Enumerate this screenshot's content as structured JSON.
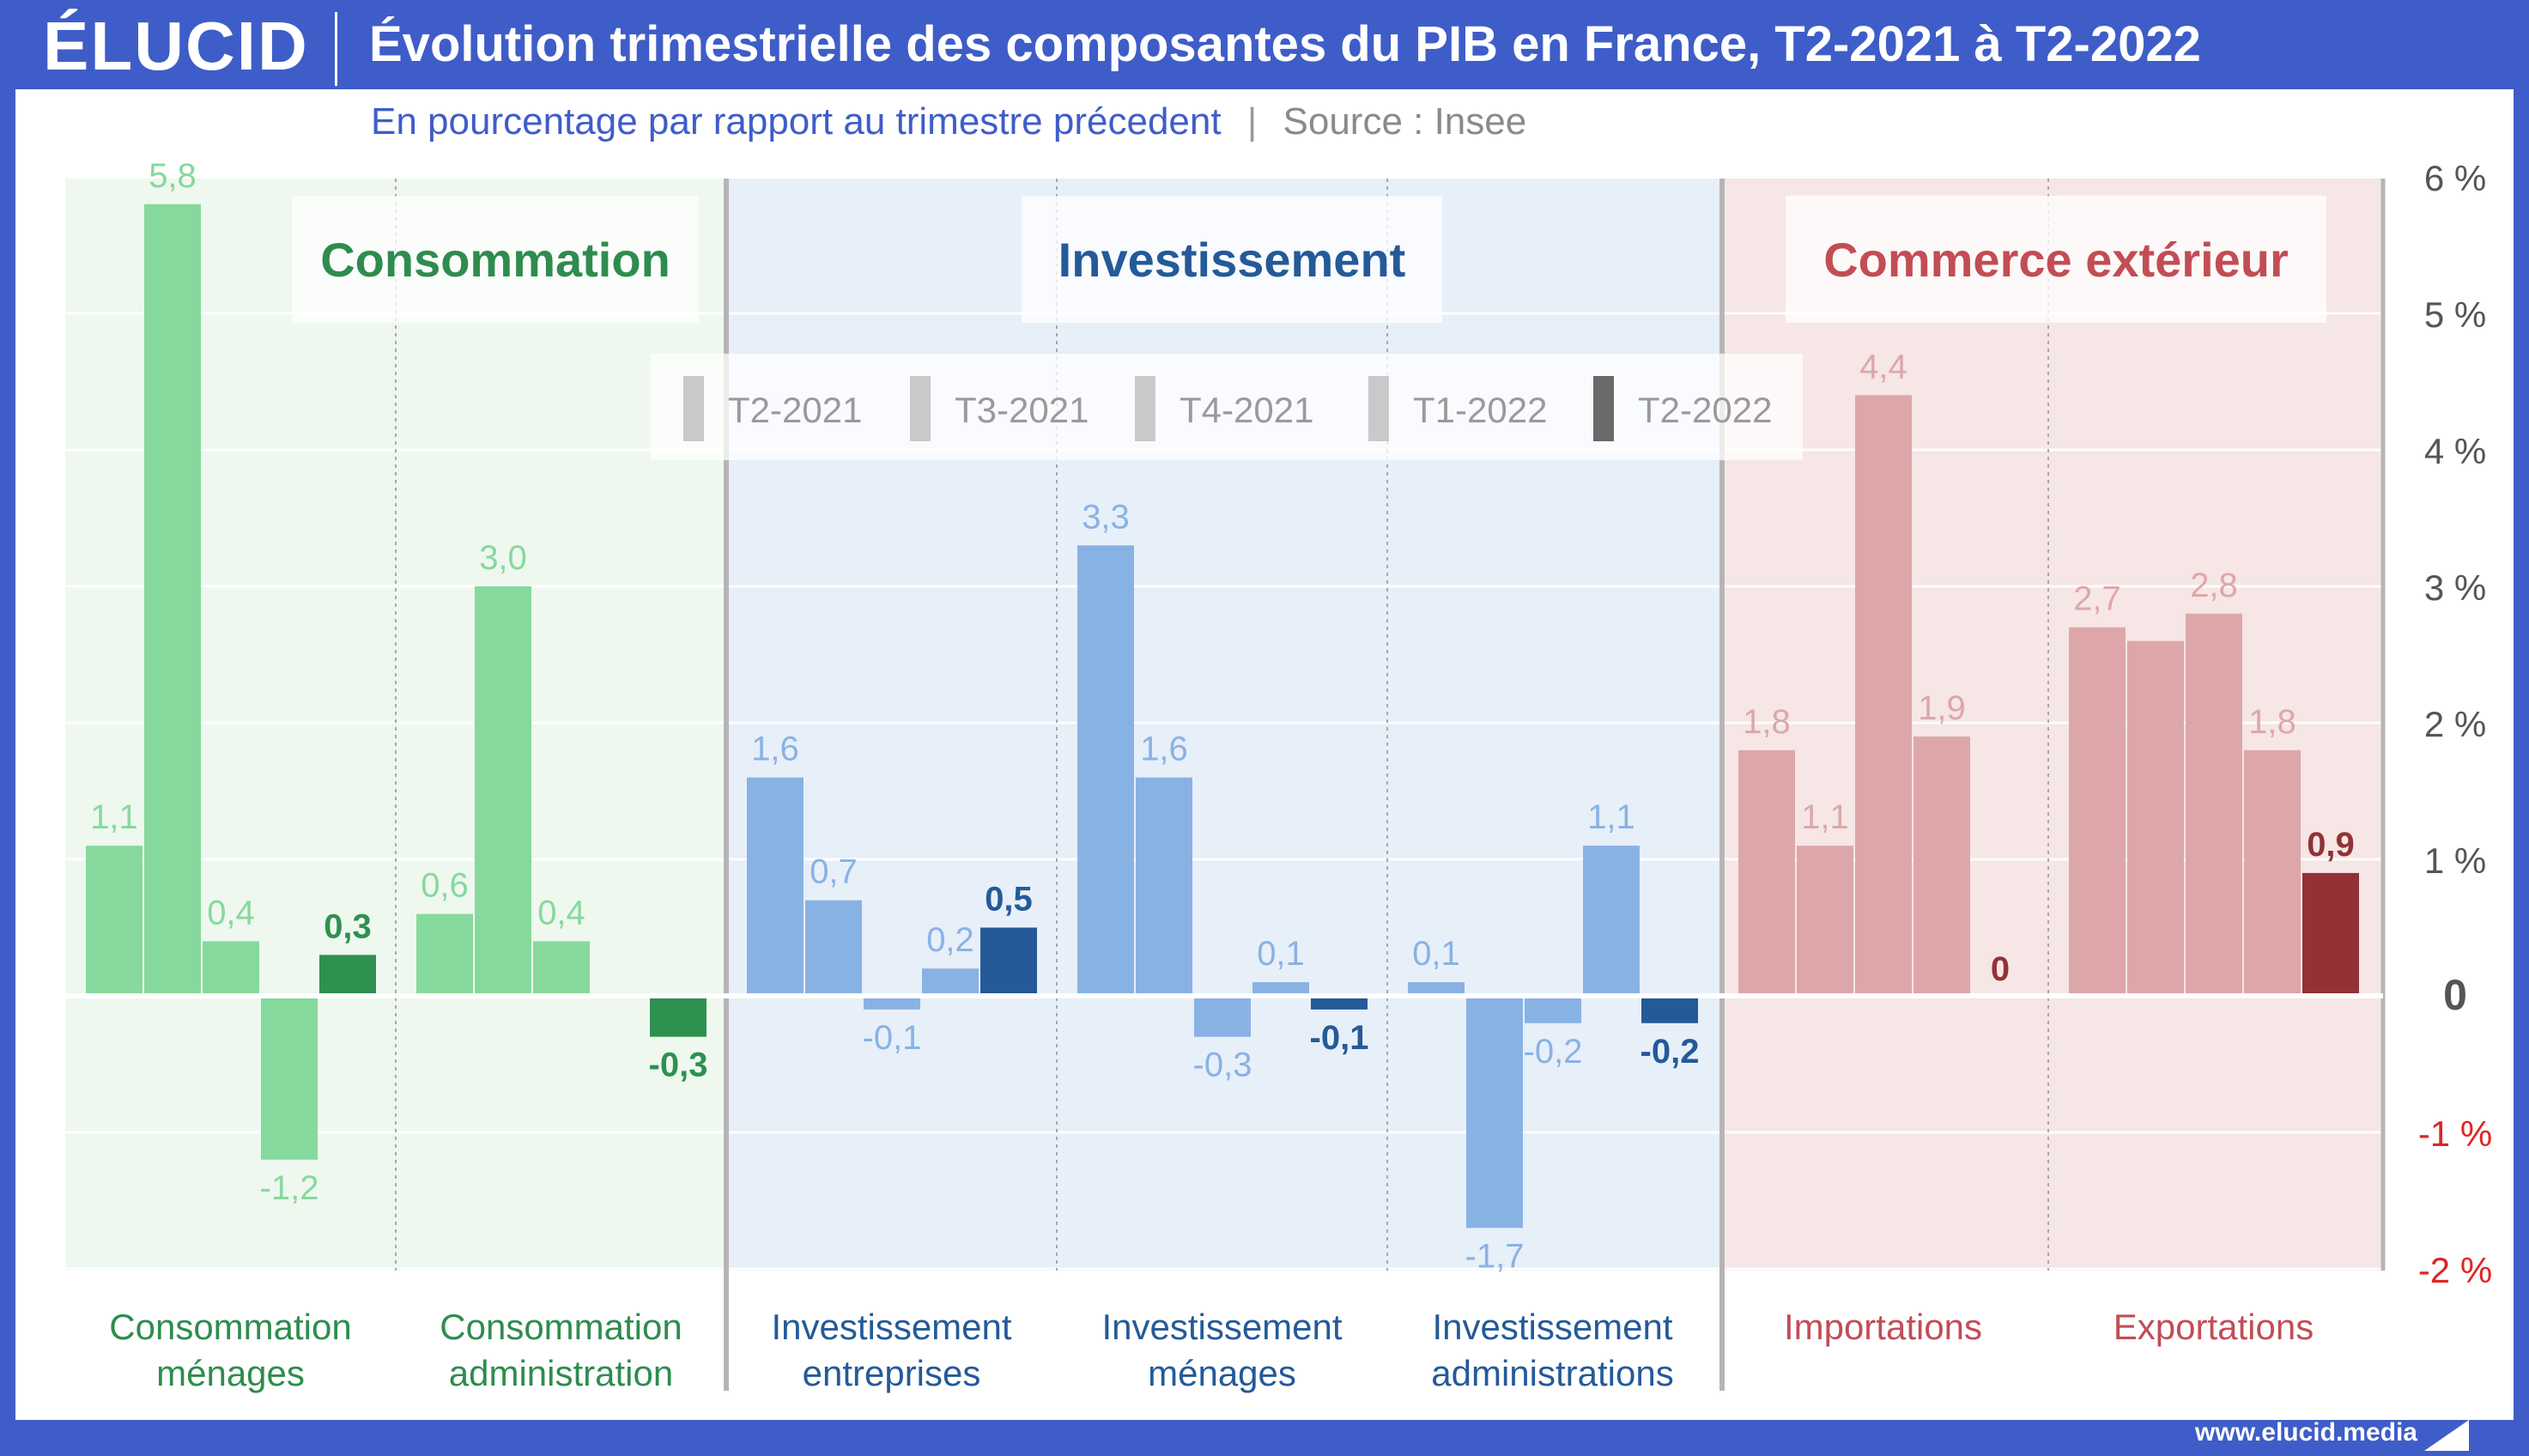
{
  "header": {
    "logo": "ÉLUCID",
    "title": "Évolution trimestrielle des composantes du PIB en France, T2-2021 à T2-2022",
    "subtitle_main": "En pourcentage par rapport au trimestre précedent",
    "subtitle_sep": "|",
    "subtitle_source": "Source : Insee"
  },
  "footer": {
    "url": "www.elucid.media"
  },
  "colors": {
    "conso_light": "#86d99c",
    "conso_dark": "#2e9150",
    "conso_text": "#2e8c4e",
    "conso_bg": "#eef8ef",
    "invest_light": "#89b2e4",
    "invest_dark": "#245a98",
    "invest_text": "#245a98",
    "invest_bg": "#e7eff9",
    "ext_light": "#dda7a9",
    "ext_dark": "#923236",
    "ext_text": "#c24d55",
    "ext_bg": "#f6e6e6",
    "negative_axis": "#e02424"
  },
  "chart_data": {
    "type": "bar",
    "title": "Évolution trimestrielle des composantes du PIB en France, T2-2021 à T2-2022",
    "subtitle": "En pourcentage par rapport au trimestre précedent",
    "ylabel": "",
    "ylim": [
      -2,
      6
    ],
    "y_ticks": [
      {
        "value": 6,
        "label": "6 %"
      },
      {
        "value": 5,
        "label": "5 %"
      },
      {
        "value": 4,
        "label": "4 %"
      },
      {
        "value": 3,
        "label": "3 %"
      },
      {
        "value": 2,
        "label": "2 %"
      },
      {
        "value": 1,
        "label": "1 %"
      },
      {
        "value": 0,
        "label": "0"
      },
      {
        "value": -1,
        "label": "-1 %"
      },
      {
        "value": -2,
        "label": "-2 %"
      }
    ],
    "legend": [
      "T2-2021",
      "T3-2021",
      "T4-2021",
      "T1-2022",
      "T2-2022"
    ],
    "legend_placement": "top-center",
    "groups": [
      {
        "name": "Consommation",
        "theme": "conso",
        "categories": [
          {
            "label": [
              "Consommation",
              "ménages"
            ],
            "values": [
              1.1,
              5.8,
              0.4,
              -1.2,
              0.3
            ],
            "labels": [
              "1,1",
              "5,8",
              "0,4",
              "-1,2",
              "0,3"
            ]
          },
          {
            "label": [
              "Consommation",
              "administration"
            ],
            "values": [
              0.6,
              3.0,
              0.4,
              0,
              -0.3
            ],
            "labels": [
              "0,6",
              "3,0",
              "0,4",
              "",
              "-0,3"
            ]
          }
        ]
      },
      {
        "name": "Investissement",
        "theme": "invest",
        "categories": [
          {
            "label": [
              "Investissement",
              "entreprises"
            ],
            "values": [
              1.6,
              0.7,
              -0.1,
              0.2,
              0.5
            ],
            "labels": [
              "1,6",
              "0,7",
              "-0,1",
              "0,2",
              "0,5"
            ]
          },
          {
            "label": [
              "Investissement",
              "ménages"
            ],
            "values": [
              3.3,
              1.6,
              -0.3,
              0.1,
              -0.1
            ],
            "labels": [
              "3,3",
              "1,6",
              "-0,3",
              "0,1",
              "-0,1"
            ]
          },
          {
            "label": [
              "Investissement",
              "administrations"
            ],
            "values": [
              0.1,
              -1.7,
              -0.2,
              1.1,
              -0.2
            ],
            "labels": [
              "0,1",
              "-1,7",
              "-0,2",
              "1,1",
              "-0,2"
            ]
          }
        ]
      },
      {
        "name": "Commerce extérieur",
        "theme": "ext",
        "categories": [
          {
            "label": [
              "Importations"
            ],
            "values": [
              1.8,
              1.1,
              4.4,
              1.9,
              0
            ],
            "labels": [
              "1,8",
              "1,1",
              "4,4",
              "1,9",
              "0"
            ]
          },
          {
            "label": [
              "Exportations"
            ],
            "values": [
              2.7,
              2.6,
              2.8,
              1.8,
              0.9
            ],
            "labels": [
              "2,7",
              "",
              "2,8",
              "1,8",
              "0,9"
            ]
          }
        ]
      }
    ]
  }
}
